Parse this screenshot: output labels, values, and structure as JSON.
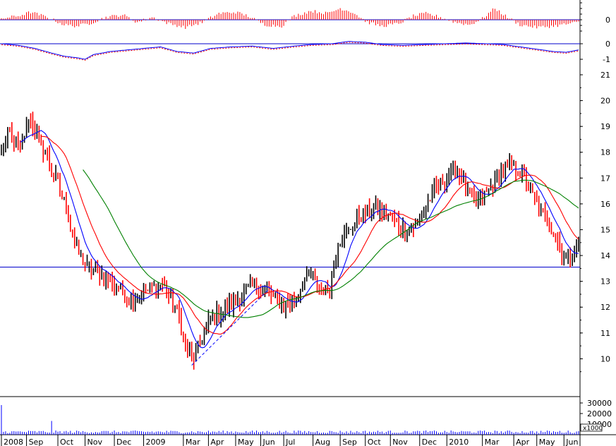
{
  "chart_data": {
    "type": "candlestick",
    "price_y_ticks": [
      "10",
      "11",
      "12",
      "13",
      "14",
      "15",
      "16",
      "17",
      "18",
      "19",
      "20",
      "21"
    ],
    "price_ylim": [
      9,
      21.3
    ],
    "oscillator_panel": {
      "y_tick": "0",
      "value_range": [
        -1,
        1
      ]
    },
    "momentum_panel": {
      "y_ticks": [
        "0",
        "-1"
      ],
      "value_range": [
        -1.5,
        0.2
      ]
    },
    "volume_panel": {
      "y_ticks": [
        "30000",
        "20000",
        "10000"
      ],
      "unit_label": "x1000",
      "ylim": [
        0,
        34000
      ]
    },
    "x_tick_labels": [
      "2008",
      "Sep",
      "Oct",
      "Nov",
      "Dec",
      "2009",
      "Mar",
      "Apr",
      "May",
      "Jun",
      "Jul",
      "Aug",
      "Sep",
      "Oct",
      "Nov",
      "Dec",
      "2010",
      "Mar",
      "Apr",
      "May",
      "Jun"
    ],
    "horizontal_level": 13.55,
    "grid": false,
    "price_anchors": [
      [
        0,
        18.0
      ],
      [
        4,
        18.7
      ],
      [
        9,
        18.0
      ],
      [
        13,
        19.4
      ],
      [
        18,
        18.5
      ],
      [
        23,
        17.6
      ],
      [
        27,
        16.8
      ],
      [
        31,
        15.8
      ],
      [
        35,
        14.5
      ],
      [
        40,
        13.6
      ],
      [
        46,
        13.4
      ],
      [
        52,
        13.0
      ],
      [
        57,
        12.6
      ],
      [
        63,
        12.3
      ],
      [
        68,
        12.5
      ],
      [
        72,
        12.7
      ],
      [
        77,
        12.9
      ],
      [
        81,
        12.3
      ],
      [
        85,
        11.6
      ],
      [
        88,
        10.4
      ],
      [
        92,
        10.0
      ],
      [
        96,
        10.8
      ],
      [
        100,
        11.6
      ],
      [
        105,
        11.8
      ],
      [
        110,
        12.1
      ],
      [
        115,
        12.5
      ],
      [
        120,
        12.9
      ],
      [
        125,
        12.7
      ],
      [
        130,
        12.4
      ],
      [
        135,
        12.1
      ],
      [
        139,
        12.2
      ],
      [
        144,
        12.9
      ],
      [
        148,
        13.3
      ],
      [
        152,
        12.7
      ],
      [
        157,
        12.6
      ],
      [
        161,
        14.5
      ],
      [
        166,
        15.0
      ],
      [
        170,
        15.4
      ],
      [
        175,
        15.7
      ],
      [
        179,
        15.9
      ],
      [
        183,
        15.7
      ],
      [
        187,
        15.4
      ],
      [
        191,
        15.1
      ],
      [
        196,
        15.0
      ],
      [
        200,
        15.4
      ],
      [
        205,
        16.2
      ],
      [
        210,
        16.8
      ],
      [
        215,
        17.2
      ],
      [
        218,
        17.3
      ],
      [
        222,
        16.6
      ],
      [
        226,
        16.1
      ],
      [
        231,
        16.3
      ],
      [
        236,
        16.9
      ],
      [
        240,
        17.3
      ],
      [
        244,
        17.5
      ],
      [
        249,
        17.1
      ],
      [
        253,
        16.5
      ],
      [
        257,
        15.8
      ],
      [
        261,
        15.3
      ],
      [
        265,
        14.8
      ],
      [
        268,
        14.0
      ],
      [
        271,
        13.9
      ],
      [
        274,
        14.2
      ],
      [
        276,
        14.5
      ]
    ],
    "osc_anchors": [
      [
        0,
        0.1
      ],
      [
        8,
        0.3
      ],
      [
        14,
        0.6
      ],
      [
        22,
        0.2
      ],
      [
        30,
        -0.4
      ],
      [
        36,
        -0.5
      ],
      [
        42,
        -0.3
      ],
      [
        50,
        0.2
      ],
      [
        58,
        0.4
      ],
      [
        65,
        -0.2
      ],
      [
        72,
        0.2
      ],
      [
        80,
        -0.3
      ],
      [
        88,
        -0.6
      ],
      [
        96,
        -0.2
      ],
      [
        104,
        0.5
      ],
      [
        112,
        0.6
      ],
      [
        118,
        0.3
      ],
      [
        126,
        -0.4
      ],
      [
        134,
        -0.5
      ],
      [
        140,
        0.3
      ],
      [
        148,
        0.7
      ],
      [
        156,
        0.5
      ],
      [
        162,
        0.9
      ],
      [
        168,
        0.6
      ],
      [
        175,
        -0.2
      ],
      [
        182,
        -0.5
      ],
      [
        190,
        -0.3
      ],
      [
        197,
        0.3
      ],
      [
        203,
        0.5
      ],
      [
        210,
        0.2
      ],
      [
        217,
        -0.2
      ],
      [
        224,
        -0.4
      ],
      [
        230,
        0.1
      ],
      [
        236,
        0.9
      ],
      [
        241,
        0.3
      ],
      [
        248,
        -0.4
      ],
      [
        256,
        -0.6
      ],
      [
        264,
        -0.5
      ],
      [
        272,
        -0.3
      ],
      [
        276,
        -0.2
      ]
    ],
    "mom_anchors": [
      [
        0,
        0.0
      ],
      [
        8,
        -0.1
      ],
      [
        16,
        -0.3
      ],
      [
        24,
        -0.6
      ],
      [
        30,
        -0.8
      ],
      [
        36,
        -0.9
      ],
      [
        40,
        -1.0
      ],
      [
        44,
        -0.7
      ],
      [
        52,
        -0.5
      ],
      [
        60,
        -0.4
      ],
      [
        68,
        -0.3
      ],
      [
        76,
        -0.2
      ],
      [
        84,
        -0.5
      ],
      [
        92,
        -0.6
      ],
      [
        100,
        -0.3
      ],
      [
        110,
        -0.2
      ],
      [
        120,
        -0.15
      ],
      [
        130,
        -0.3
      ],
      [
        140,
        -0.15
      ],
      [
        148,
        -0.05
      ],
      [
        158,
        0.0
      ],
      [
        166,
        0.15
      ],
      [
        174,
        0.1
      ],
      [
        182,
        -0.05
      ],
      [
        192,
        -0.1
      ],
      [
        202,
        -0.05
      ],
      [
        212,
        0.0
      ],
      [
        222,
        0.05
      ],
      [
        232,
        0.0
      ],
      [
        240,
        -0.05
      ],
      [
        248,
        -0.2
      ],
      [
        256,
        -0.35
      ],
      [
        264,
        -0.5
      ],
      [
        270,
        -0.55
      ],
      [
        276,
        -0.4
      ]
    ],
    "colors": {
      "up": "#000000",
      "down": "#ff0000",
      "ma_short": "#0000ff",
      "ma_medium": "#ff0000",
      "ma_long": "#008000",
      "horizontal_line": "#0000cc",
      "oscillator_bars": "#ff0000",
      "trendline": "#0000ff"
    }
  }
}
